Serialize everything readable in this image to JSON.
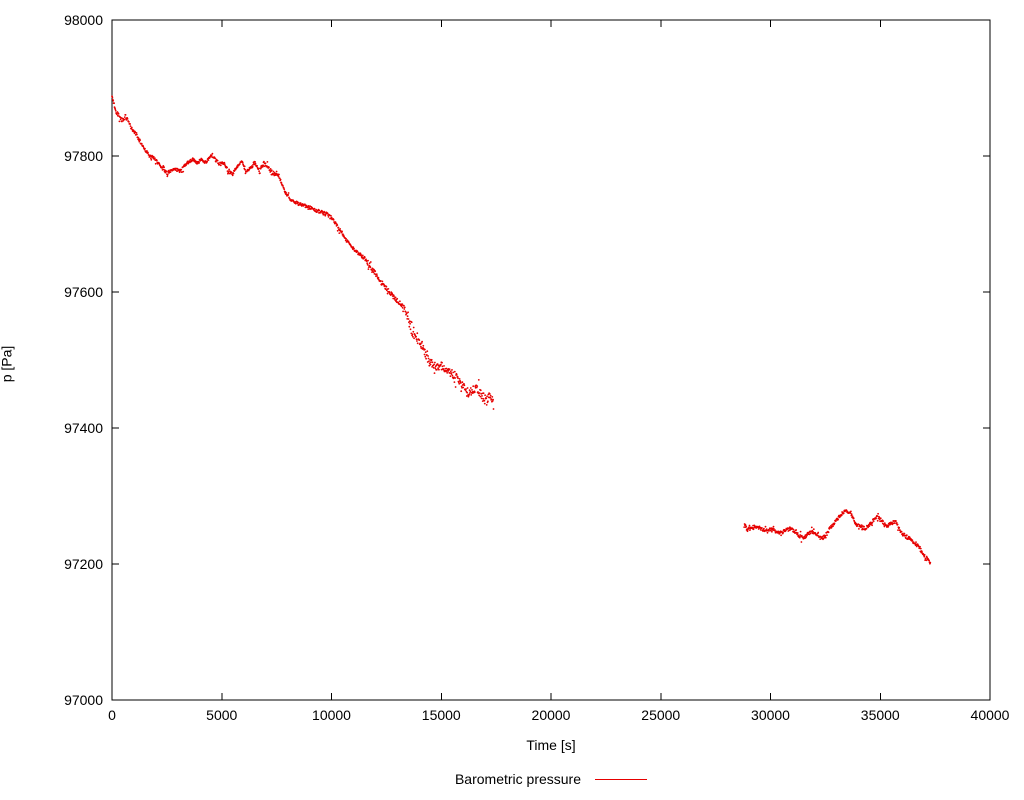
{
  "chart_data": {
    "type": "scatter",
    "title": "",
    "xlabel": "Time [s]",
    "ylabel": "p [Pa]",
    "xlim": [
      0,
      40000
    ],
    "ylim": [
      97000,
      98000
    ],
    "x_ticks": [
      0,
      5000,
      10000,
      15000,
      20000,
      25000,
      30000,
      35000,
      40000
    ],
    "y_ticks": [
      97000,
      97200,
      97400,
      97600,
      97800,
      98000
    ],
    "grid": false,
    "legend_position": "bottom-center",
    "sample_step": 18,
    "series": [
      {
        "name": "Barometric pressure",
        "color": "#e60000",
        "marker": "dot",
        "segments": [
          [
            [
              0,
              97888,
              4
            ],
            [
              150,
              97868,
              5
            ],
            [
              300,
              97860,
              5
            ],
            [
              450,
              97852,
              5
            ],
            [
              600,
              97858,
              5
            ],
            [
              750,
              97850,
              5
            ],
            [
              900,
              97840,
              4
            ],
            [
              1100,
              97832,
              4
            ],
            [
              1300,
              97820,
              4
            ],
            [
              1500,
              97810,
              4
            ],
            [
              1700,
              97800,
              4
            ],
            [
              1900,
              97797,
              4
            ],
            [
              2100,
              97790,
              4
            ],
            [
              2300,
              97782,
              4
            ],
            [
              2500,
              97775,
              4
            ],
            [
              2700,
              97778,
              4
            ],
            [
              2900,
              97780,
              4
            ],
            [
              3100,
              97778,
              4
            ],
            [
              3300,
              97785,
              4
            ],
            [
              3500,
              97792,
              4
            ],
            [
              3700,
              97795,
              4
            ],
            [
              3900,
              97790,
              4
            ],
            [
              4100,
              97795,
              4
            ],
            [
              4300,
              97790,
              4
            ],
            [
              4500,
              97800,
              4
            ],
            [
              4700,
              97795,
              4
            ],
            [
              4900,
              97788,
              4
            ],
            [
              5100,
              97790,
              4
            ],
            [
              5300,
              97778,
              4
            ],
            [
              5500,
              97773,
              4
            ],
            [
              5700,
              97785,
              4
            ],
            [
              5900,
              97792,
              5
            ],
            [
              6100,
              97778,
              4
            ],
            [
              6300,
              97782,
              4
            ],
            [
              6500,
              97790,
              5
            ],
            [
              6700,
              97778,
              4
            ],
            [
              6900,
              97788,
              5
            ],
            [
              7100,
              97785,
              4
            ],
            [
              7300,
              97772,
              4
            ],
            [
              7500,
              97775,
              4
            ],
            [
              7700,
              97762,
              4
            ],
            [
              7900,
              97745,
              4
            ],
            [
              8100,
              97738,
              4
            ],
            [
              8300,
              97732,
              4
            ],
            [
              8500,
              97730,
              4
            ],
            [
              8700,
              97728,
              4
            ],
            [
              8900,
              97725,
              4
            ],
            [
              9100,
              97723,
              4
            ],
            [
              9300,
              97720,
              4
            ],
            [
              9500,
              97718,
              4
            ],
            [
              9700,
              97715,
              5
            ],
            [
              9900,
              97712,
              5
            ],
            [
              10100,
              97705,
              4
            ],
            [
              10300,
              97695,
              4
            ],
            [
              10500,
              97686,
              4
            ],
            [
              10700,
              97675,
              4
            ],
            [
              10900,
              97668,
              4
            ],
            [
              11100,
              97660,
              4
            ],
            [
              11300,
              97655,
              4
            ],
            [
              11500,
              97650,
              5
            ],
            [
              11700,
              97640,
              5
            ],
            [
              11900,
              97632,
              5
            ],
            [
              12100,
              97622,
              5
            ],
            [
              12300,
              97612,
              5
            ],
            [
              12500,
              97605,
              5
            ],
            [
              12700,
              97598,
              5
            ],
            [
              12900,
              97590,
              5
            ],
            [
              13100,
              97584,
              5
            ],
            [
              13300,
              97578,
              6
            ],
            [
              13450,
              97565,
              8
            ],
            [
              13600,
              97545,
              10
            ],
            [
              13800,
              97532,
              10
            ],
            [
              14000,
              97528,
              8
            ],
            [
              14200,
              97515,
              8
            ],
            [
              14400,
              97500,
              10
            ],
            [
              14600,
              97495,
              10
            ],
            [
              14800,
              97490,
              10
            ],
            [
              15000,
              97492,
              10
            ],
            [
              15200,
              97485,
              10
            ],
            [
              15400,
              97482,
              10
            ],
            [
              15600,
              97478,
              10
            ],
            [
              15800,
              97470,
              10
            ],
            [
              16000,
              97460,
              12
            ],
            [
              16200,
              97452,
              12
            ],
            [
              16400,
              97455,
              12
            ],
            [
              16600,
              97458,
              10
            ],
            [
              16800,
              97450,
              12
            ],
            [
              17000,
              97442,
              12
            ],
            [
              17200,
              97445,
              10
            ],
            [
              17400,
              97438,
              8
            ]
          ],
          [
            [
              28800,
              97260,
              5
            ],
            [
              28950,
              97250,
              4
            ],
            [
              29100,
              97252,
              4
            ],
            [
              29300,
              97256,
              4
            ],
            [
              29500,
              97253,
              4
            ],
            [
              29700,
              97250,
              4
            ],
            [
              29900,
              97251,
              4
            ],
            [
              30100,
              97250,
              4
            ],
            [
              30300,
              97247,
              4
            ],
            [
              30500,
              97245,
              5
            ],
            [
              30700,
              97250,
              4
            ],
            [
              30900,
              97252,
              4
            ],
            [
              31100,
              97248,
              4
            ],
            [
              31300,
              97242,
              5
            ],
            [
              31500,
              97238,
              5
            ],
            [
              31700,
              97244,
              4
            ],
            [
              31900,
              97248,
              4
            ],
            [
              32100,
              97244,
              4
            ],
            [
              32300,
              97238,
              5
            ],
            [
              32500,
              97240,
              5
            ],
            [
              32700,
              97252,
              4
            ],
            [
              32900,
              97260,
              4
            ],
            [
              33100,
              97268,
              4
            ],
            [
              33300,
              97276,
              4
            ],
            [
              33500,
              97278,
              4
            ],
            [
              33700,
              97272,
              4
            ],
            [
              33900,
              97258,
              4
            ],
            [
              34100,
              97256,
              4
            ],
            [
              34300,
              97252,
              4
            ],
            [
              34500,
              97257,
              4
            ],
            [
              34700,
              97265,
              4
            ],
            [
              34900,
              97270,
              4
            ],
            [
              35100,
              97262,
              4
            ],
            [
              35300,
              97255,
              4
            ],
            [
              35500,
              97260,
              4
            ],
            [
              35700,
              97262,
              4
            ],
            [
              35900,
              97250,
              4
            ],
            [
              36100,
              97242,
              5
            ],
            [
              36300,
              97238,
              5
            ],
            [
              36500,
              97232,
              5
            ],
            [
              36700,
              97228,
              5
            ],
            [
              36900,
              97218,
              5
            ],
            [
              37100,
              97208,
              5
            ],
            [
              37300,
              97200,
              5
            ]
          ]
        ]
      }
    ]
  }
}
